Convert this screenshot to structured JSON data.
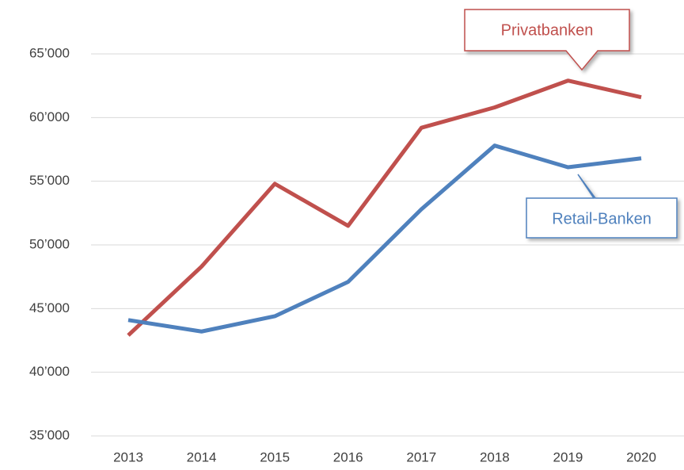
{
  "chart_data": {
    "type": "line",
    "categories": [
      "2013",
      "2014",
      "2015",
      "2016",
      "2017",
      "2018",
      "2019",
      "2020"
    ],
    "series": [
      {
        "name": "Privatbanken",
        "color": "#c0504d",
        "values": [
          42900,
          48300,
          54800,
          51500,
          59200,
          60800,
          62900,
          61600
        ]
      },
      {
        "name": "Retail-Banken",
        "color": "#4f81bd",
        "values": [
          44100,
          43200,
          44400,
          47100,
          52800,
          57800,
          56100,
          56800
        ]
      }
    ],
    "ylim": [
      35000,
      65000
    ],
    "yticks": [
      {
        "value": 35000,
        "label": "35’000"
      },
      {
        "value": 40000,
        "label": "40’000"
      },
      {
        "value": 45000,
        "label": "45’000"
      },
      {
        "value": 50000,
        "label": "50’000"
      },
      {
        "value": 55000,
        "label": "55’000"
      },
      {
        "value": 60000,
        "label": "60’000"
      },
      {
        "value": 65000,
        "label": "65’000"
      }
    ],
    "grid": true
  }
}
